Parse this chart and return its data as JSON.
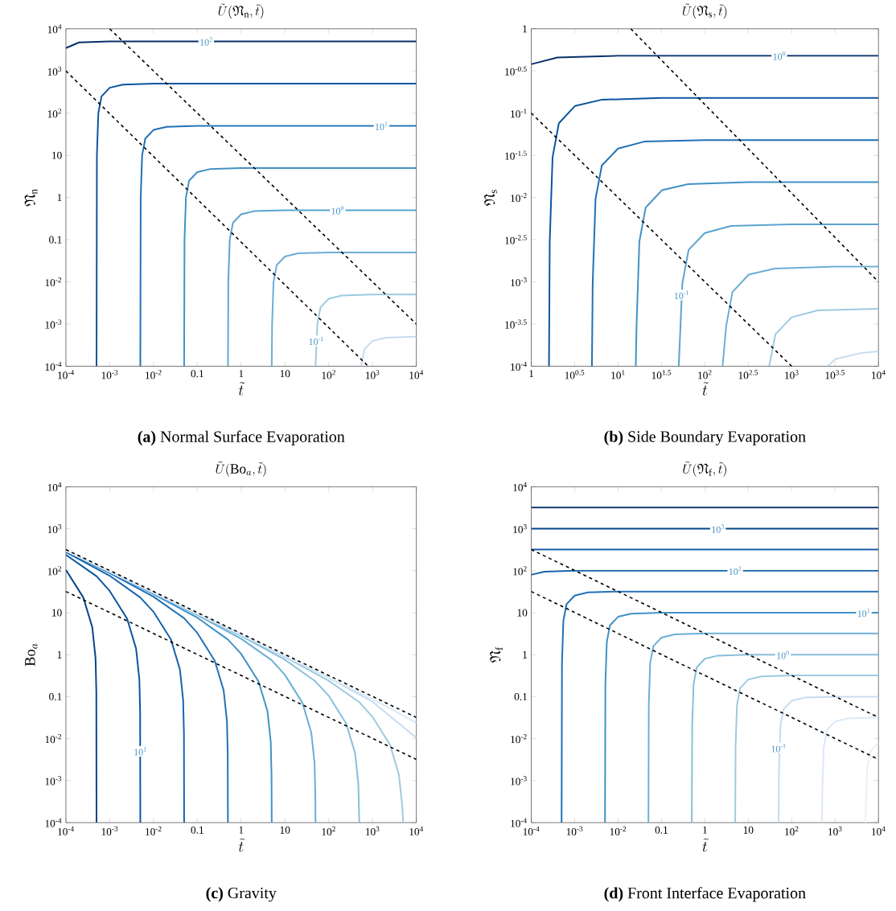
{
  "chart_data": [
    {
      "type": "line",
      "title": "\\tilde{U}(\\mathfrak{N}_{\\mathrm{n}}, \\tilde{t})",
      "xlabel": "\\tilde{t}",
      "ylabel": "\\mathfrak{N}_{\\mathrm{n}}",
      "log": "xy",
      "xlim": [
        0.0001,
        10000
      ],
      "ylim": [
        0.0001,
        10000
      ],
      "xticks": [
        {
          "value": 0.0001,
          "label": "10$^{-4}$"
        },
        {
          "value": 0.001,
          "label": "10$^{-3}$"
        },
        {
          "value": 0.01,
          "label": "10$^{-2}$"
        },
        0.1,
        1,
        10,
        {
          "value": 100,
          "label": "10$^{2}$"
        },
        {
          "value": 1000,
          "label": "10$^{3}$"
        },
        {
          "value": 10000,
          "label": "10$^{4}$"
        }
      ],
      "yticks": [
        {
          "value": 0.0001,
          "label": "10$^{-4}$"
        },
        {
          "value": 0.001,
          "label": "10$^{-3}$"
        },
        {
          "value": 0.01,
          "label": "10$^{-2}$"
        },
        0.1,
        1,
        10,
        {
          "value": 100,
          "label": "10$^{2}$"
        },
        {
          "value": 1000,
          "label": "10$^{3}$"
        },
        {
          "value": 10000,
          "label": "10$^{4}$"
        }
      ],
      "series": [
        {
          "color": "#08306b",
          "x": [
            0.0001,
            0.0002,
            0.001,
            10000
          ],
          "values": [
            3500,
            4750,
            5000,
            5000
          ]
        },
        {
          "color": "#0b559f",
          "x": [
            0.0005,
            0.00051,
            0.00055,
            0.00065,
            0.001,
            0.002,
            0.01,
            10000
          ],
          "values": [
            0.0001,
            10,
            100,
            250,
            400,
            475,
            500,
            500
          ]
        },
        {
          "color": "#2171b5",
          "x": [
            0.005,
            0.0051,
            0.0055,
            0.0065,
            0.01,
            0.02,
            0.1,
            10000
          ],
          "values": [
            0.0001,
            1,
            10,
            25,
            40,
            47.5,
            50,
            50
          ]
        },
        {
          "color": "#4292c6",
          "x": [
            0.05,
            0.051,
            0.055,
            0.065,
            0.1,
            0.2,
            1,
            10000
          ],
          "values": [
            0.0001,
            0.1,
            1,
            2.5,
            4,
            4.75,
            5,
            5
          ]
        },
        {
          "color": "#5ba3d0",
          "x": [
            0.5,
            0.51,
            0.55,
            0.65,
            1,
            2,
            10,
            10000
          ],
          "values": [
            0.0001,
            0.01,
            0.1,
            0.25,
            0.4,
            0.475,
            0.5,
            0.5
          ]
        },
        {
          "color": "#6baed6",
          "x": [
            5,
            5.1,
            5.5,
            6.5,
            10,
            20,
            100,
            10000
          ],
          "values": [
            0.0001,
            0.001,
            0.01,
            0.025,
            0.04,
            0.0475,
            0.05,
            0.05
          ]
        },
        {
          "color": "#9ecae1",
          "x": [
            50,
            55,
            65,
            100,
            200,
            1000,
            10000
          ],
          "values": [
            0.0001,
            0.001,
            0.0025,
            0.004,
            0.00475,
            0.005,
            0.005
          ]
        },
        {
          "color": "#c6dbef",
          "x": [
            550,
            650,
            1000,
            2000,
            10000
          ],
          "values": [
            0.0001,
            0.00025,
            0.0004,
            0.000475,
            0.0005
          ]
        },
        {
          "color": "#000000",
          "line_style": "dashed",
          "x": [
            0.001,
            10000
          ],
          "values": [
            10000,
            0.001
          ]
        },
        {
          "color": "#000000",
          "line_style": "dashed",
          "x": [
            0.0001,
            800
          ],
          "values": [
            1000,
            0.0001
          ]
        }
      ],
      "annotations": [
        {
          "text": "10$^{2}$",
          "x": 0.16,
          "y": 5000
        },
        {
          "text": "10$^{1}$",
          "x": 1600,
          "y": 50
        },
        {
          "text": "10$^{0}$",
          "x": 160,
          "y": 0.5
        },
        {
          "text": "10$^{-1}$",
          "x": 52,
          "y": 0.0004
        },
        "**(a)** Normal Surface Evaporation"
      ]
    },
    {
      "type": "line",
      "title": "\\tilde{U}(\\mathfrak{N}_{\\mathrm{s}}, \\tilde{t})",
      "xlabel": "\\tilde{t}",
      "ylabel": "\\mathfrak{N}_{\\mathrm{s}}",
      "log": "xy",
      "xlim": [
        1,
        10000
      ],
      "ylim": [
        0.0001,
        1
      ],
      "xticks": [
        1,
        {
          "value": 3.16228,
          "label": "10$^{0.5}$"
        },
        {
          "value": 10,
          "label": "10$^{1}$"
        },
        {
          "value": 31.6228,
          "label": "10$^{1.5}$"
        },
        {
          "value": 100,
          "label": "10$^{2}$"
        },
        {
          "value": 316.228,
          "label": "10$^{2.5}$"
        },
        {
          "value": 1000,
          "label": "10$^{3}$"
        },
        {
          "value": 3162.28,
          "label": "10$^{3.5}$"
        },
        {
          "value": 10000,
          "label": "10$^{4}$"
        }
      ],
      "yticks": [
        {
          "value": 0.0001,
          "label": "10$^{-4}$"
        },
        {
          "value": 0.000316228,
          "label": "10$^{-3.5}$"
        },
        {
          "value": 0.001,
          "label": "10$^{-3}$"
        },
        {
          "value": 0.00316228,
          "label": "10$^{-2.5}$"
        },
        {
          "value": 0.01,
          "label": "10$^{-2}$"
        },
        {
          "value": 0.0316228,
          "label": "10$^{-1.5}$"
        },
        {
          "value": 0.1,
          "label": "10$^{-1}$"
        },
        {
          "value": 0.316228,
          "label": "10$^{-0.5}$"
        },
        1
      ],
      "series": [
        {
          "color": "#08306b",
          "x": [
            1,
            2,
            10,
            10000
          ],
          "values": [
            0.38,
            0.456,
            0.48,
            0.48
          ]
        },
        {
          "color": "#0b559f",
          "x": [
            1.6,
            1.632,
            1.76,
            2.08,
            3.2,
            6.4,
            32,
            10000
          ],
          "values": [
            0.0001,
            0.003,
            0.03,
            0.076,
            0.122,
            0.144,
            0.152,
            0.152
          ]
        },
        {
          "color": "#2171b5",
          "x": [
            5,
            5.1,
            5.5,
            6.5,
            10,
            20,
            100,
            10000
          ],
          "values": [
            0.0001,
            0.00096,
            0.0096,
            0.024,
            0.038,
            0.046,
            0.048,
            0.048
          ]
        },
        {
          "color": "#4292c6",
          "x": [
            16,
            16.32,
            17.6,
            20.8,
            32,
            64,
            320,
            10000
          ],
          "values": [
            0.0001,
            0.0003,
            0.003,
            0.0076,
            0.0122,
            0.0144,
            0.0152,
            0.0152
          ]
        },
        {
          "color": "#5ba3d0",
          "x": [
            50,
            55,
            65,
            100,
            200,
            1000,
            10000
          ],
          "values": [
            0.0001,
            0.00096,
            0.0024,
            0.0038,
            0.0046,
            0.0048,
            0.0048
          ]
        },
        {
          "color": "#6baed6",
          "x": [
            160,
            176,
            208,
            320,
            640,
            3200,
            10000
          ],
          "values": [
            0.0001,
            0.0003,
            0.00076,
            0.00122,
            0.00144,
            0.00152,
            0.00152
          ]
        },
        {
          "color": "#9ecae1",
          "x": [
            550,
            650,
            1000,
            2000,
            10000
          ],
          "values": [
            0.0001,
            0.00024,
            0.00038,
            0.00046,
            0.00048
          ]
        },
        {
          "color": "#c6dbef",
          "x": [
            2600,
            3200,
            6400,
            10000
          ],
          "values": [
            0.0001,
            0.000122,
            0.000144,
            0.00015
          ]
        },
        {
          "color": "#000000",
          "line_style": "dashed",
          "x": [
            14,
            10000
          ],
          "values": [
            1,
            0.001
          ]
        },
        {
          "color": "#000000",
          "line_style": "dashed",
          "x": [
            1,
            1000
          ],
          "values": [
            0.1,
            0.0001
          ]
        }
      ],
      "annotations": [
        {
          "text": "10$^{0}$",
          "x": 720,
          "y": 0.48
        },
        {
          "text": "10$^{-1}$",
          "x": 54,
          "y": 0.0007
        },
        "**(b)** Side Boundary Evaporation"
      ]
    },
    {
      "type": "line",
      "title": "\\tilde{U}(\\mathrm{Bo}_a, \\tilde{t})",
      "xlabel": "\\tilde{t}",
      "ylabel": "\\mathrm{Bo}_a",
      "log": "xy",
      "xlim": [
        0.0001,
        10000
      ],
      "ylim": [
        0.0001,
        10000
      ],
      "xticks": [
        {
          "value": 0.0001,
          "label": "10$^{-4}$"
        },
        {
          "value": 0.001,
          "label": "10$^{-3}$"
        },
        {
          "value": 0.01,
          "label": "10$^{-2}$"
        },
        0.1,
        1,
        10,
        {
          "value": 100,
          "label": "10$^{2}$"
        },
        {
          "value": 1000,
          "label": "10$^{3}$"
        },
        {
          "value": 10000,
          "label": "10$^{4}$"
        }
      ],
      "yticks": [
        {
          "value": 0.0001,
          "label": "10$^{-4}$"
        },
        {
          "value": 0.001,
          "label": "10$^{-3}$"
        },
        {
          "value": 0.01,
          "label": "10$^{-2}$"
        },
        0.1,
        1,
        10,
        {
          "value": 100,
          "label": "10$^{2}$"
        },
        {
          "value": 1000,
          "label": "10$^{3}$"
        },
        {
          "value": 10000,
          "label": "10$^{4}$"
        }
      ],
      "series": [
        {
          "color": "#08458a",
          "x": [
            0.0001,
            0.00025,
            0.0004,
            0.000475,
            0.000495,
            0.0005
          ],
          "values": [
            105,
            23,
            4.5,
            0.83,
            0.13,
            0.0001
          ]
        },
        {
          "color": "#0b559f",
          "x": [
            0.0001,
            0.0005,
            0.001,
            0.0025,
            0.004,
            0.00475,
            0.00495,
            0.005
          ],
          "values": [
            240,
            74,
            33,
            7.2,
            1.4,
            0.26,
            0.043,
            0.0001
          ]
        },
        {
          "color": "#1764ab",
          "x": [
            0.0001,
            0.001,
            0.005,
            0.01,
            0.025,
            0.04,
            0.0475,
            0.0495,
            0.05
          ],
          "values": [
            279,
            76,
            23,
            10.5,
            2.3,
            0.45,
            0.083,
            0.0135,
            0.0001
          ]
        },
        {
          "color": "#2171b5",
          "x": [
            0.0001,
            0.001,
            0.01,
            0.05,
            0.1,
            0.25,
            0.4,
            0.475,
            0.495,
            0.5
          ],
          "values": [
            294,
            88,
            24,
            7.4,
            3.3,
            0.72,
            0.14,
            0.026,
            0.0043,
            0.0001
          ]
        },
        {
          "color": "#4292c6",
          "x": [
            0.0001,
            0.001,
            0.01,
            0.1,
            0.5,
            1,
            2.5,
            4,
            4.75,
            4.95,
            5
          ],
          "values": [
            297,
            93,
            27.9,
            7.6,
            2.3,
            1.05,
            0.23,
            0.045,
            0.0083,
            0.0013,
            0.0001
          ]
        },
        {
          "color": "#6baed6",
          "x": [
            0.0001,
            0.001,
            0.01,
            0.1,
            1,
            5,
            10,
            25,
            40,
            47.5,
            49.5,
            50
          ],
          "values": [
            298,
            94,
            29.4,
            8.8,
            2.4,
            0.74,
            0.33,
            0.072,
            0.014,
            0.0026,
            0.00043,
            0.0001
          ]
        },
        {
          "color": "#89bedc",
          "x": [
            0.0001,
            0.01,
            1,
            10,
            50,
            100,
            250,
            400,
            475,
            495,
            500
          ],
          "values": [
            299,
            29.7,
            2.8,
            0.76,
            0.23,
            0.105,
            0.023,
            0.0045,
            0.00083,
            0.00014,
            0.0001
          ]
        },
        {
          "color": "#9ecae1",
          "x": [
            0.0001,
            0.01,
            1,
            10,
            100,
            500,
            1000,
            2500,
            4000,
            4750,
            5000
          ],
          "values": [
            299,
            29.9,
            2.94,
            0.88,
            0.24,
            0.074,
            0.033,
            0.0072,
            0.0014,
            0.00026,
            0.0001
          ]
        },
        {
          "color": "#c6dbef",
          "x": [
            0.0001,
            1,
            100,
            1000,
            10000
          ],
          "values": [
            300,
            2.97,
            0.28,
            0.076,
            0.0105
          ]
        },
        {
          "color": "#dbe9f6",
          "x": [
            0.0001,
            1,
            1000,
            10000
          ],
          "values": [
            300,
            2.98,
            0.088,
            0.024
          ]
        },
        {
          "color": "#000000",
          "line_style": "dashed",
          "x": [
            0.0001,
            10000
          ],
          "values": [
            320,
            0.032
          ]
        },
        {
          "color": "#000000",
          "line_style": "dashed",
          "x": [
            0.0001,
            10000
          ],
          "values": [
            32,
            0.0032
          ]
        }
      ],
      "annotations": [
        {
          "text": "10$^{1}$",
          "x": 0.005,
          "y": 0.005
        },
        "**(c)** Gravity"
      ]
    },
    {
      "type": "line",
      "title": "\\tilde{U}(\\mathfrak{N}_{\\mathrm{f}}, \\tilde{t})",
      "xlabel": "\\tilde{t}",
      "ylabel": "\\mathfrak{N}_{\\mathrm{f}}",
      "log": "xy",
      "xlim": [
        0.0001,
        10000
      ],
      "ylim": [
        0.0001,
        10000
      ],
      "xticks": [
        {
          "value": 0.0001,
          "label": "10$^{-4}$"
        },
        {
          "value": 0.001,
          "label": "10$^{-3}$"
        },
        {
          "value": 0.01,
          "label": "10$^{-2}$"
        },
        0.1,
        1,
        10,
        {
          "value": 100,
          "label": "10$^{2}$"
        },
        {
          "value": 1000,
          "label": "10$^{3}$"
        },
        {
          "value": 10000,
          "label": "10$^{4}$"
        }
      ],
      "yticks": [
        {
          "value": 0.0001,
          "label": "10$^{-4}$"
        },
        {
          "value": 0.001,
          "label": "10$^{-3}$"
        },
        {
          "value": 0.01,
          "label": "10$^{-2}$"
        },
        0.1,
        1,
        10,
        {
          "value": 100,
          "label": "10$^{2}$"
        },
        {
          "value": 1000,
          "label": "10$^{3}$"
        },
        {
          "value": 10000,
          "label": "10$^{4}$"
        }
      ],
      "series": [
        {
          "color": "#08306b",
          "x": [
            0.0001,
            10000
          ],
          "values": [
            3200,
            3200
          ]
        },
        {
          "color": "#08458a",
          "x": [
            0.0001,
            10000
          ],
          "values": [
            1000,
            1000
          ]
        },
        {
          "color": "#0b559f",
          "x": [
            0.0001,
            10000
          ],
          "values": [
            320,
            320
          ]
        },
        {
          "color": "#1764ab",
          "x": [
            0.0001,
            0.0002,
            0.001,
            10000
          ],
          "values": [
            80,
            95,
            100,
            100
          ]
        },
        {
          "color": "#2171b5",
          "x": [
            0.0005,
            0.00051,
            0.00055,
            0.00065,
            0.001,
            0.002,
            0.01,
            10000
          ],
          "values": [
            0.0001,
            0.64,
            6.4,
            16,
            25.6,
            30.4,
            32,
            32
          ]
        },
        {
          "color": "#4292c6",
          "x": [
            0.005,
            0.0051,
            0.0055,
            0.0065,
            0.01,
            0.02,
            0.1,
            10000
          ],
          "values": [
            0.0001,
            0.2,
            2,
            5,
            8,
            9.5,
            10,
            10
          ]
        },
        {
          "color": "#6baed6",
          "x": [
            0.05,
            0.051,
            0.055,
            0.065,
            0.1,
            0.2,
            1,
            10000
          ],
          "values": [
            0.0001,
            0.064,
            0.64,
            1.6,
            2.56,
            3.04,
            3.2,
            3.2
          ]
        },
        {
          "color": "#89bedc",
          "x": [
            0.5,
            0.51,
            0.55,
            0.65,
            1,
            2,
            10,
            10000
          ],
          "values": [
            0.0001,
            0.02,
            0.2,
            0.5,
            0.8,
            0.95,
            1,
            1
          ]
        },
        {
          "color": "#9ecae1",
          "x": [
            5,
            5.1,
            5.5,
            6.5,
            10,
            20,
            100,
            10000
          ],
          "values": [
            0.0001,
            0.0064,
            0.064,
            0.16,
            0.256,
            0.304,
            0.32,
            0.32
          ]
        },
        {
          "color": "#c6dbef",
          "x": [
            50,
            51,
            55,
            65,
            100,
            200,
            1000,
            10000
          ],
          "values": [
            0.0001,
            0.002,
            0.02,
            0.05,
            0.08,
            0.095,
            0.1,
            0.1
          ]
        },
        {
          "color": "#dbe9f6",
          "x": [
            500,
            510,
            550,
            650,
            1000,
            2000,
            10000
          ],
          "values": [
            0.0001,
            0.00064,
            0.0064,
            0.016,
            0.0256,
            0.0304,
            0.032
          ]
        },
        {
          "color": "#e8f1fa",
          "x": [
            5000,
            5100,
            5500,
            6500,
            10000
          ],
          "values": [
            0.0001,
            0.0002,
            0.002,
            0.005,
            0.008
          ]
        },
        {
          "color": "#000000",
          "line_style": "dashed",
          "x": [
            0.0001,
            10000
          ],
          "values": [
            320,
            0.032
          ]
        },
        {
          "color": "#000000",
          "line_style": "dashed",
          "x": [
            0.0001,
            10000
          ],
          "values": [
            32,
            0.0032
          ]
        }
      ],
      "annotations": [
        {
          "text": "10$^{3}$",
          "x": 2,
          "y": 1000
        },
        {
          "text": "10$^{2}$",
          "x": 5,
          "y": 100
        },
        {
          "text": "10$^{1}$",
          "x": 4600,
          "y": 10
        },
        {
          "text": "10$^{0}$",
          "x": 63,
          "y": 1
        },
        {
          "text": "10$^{-1}$",
          "x": 50,
          "y": 0.006
        },
        "**(d)** Front Interface Evaporation"
      ]
    }
  ]
}
